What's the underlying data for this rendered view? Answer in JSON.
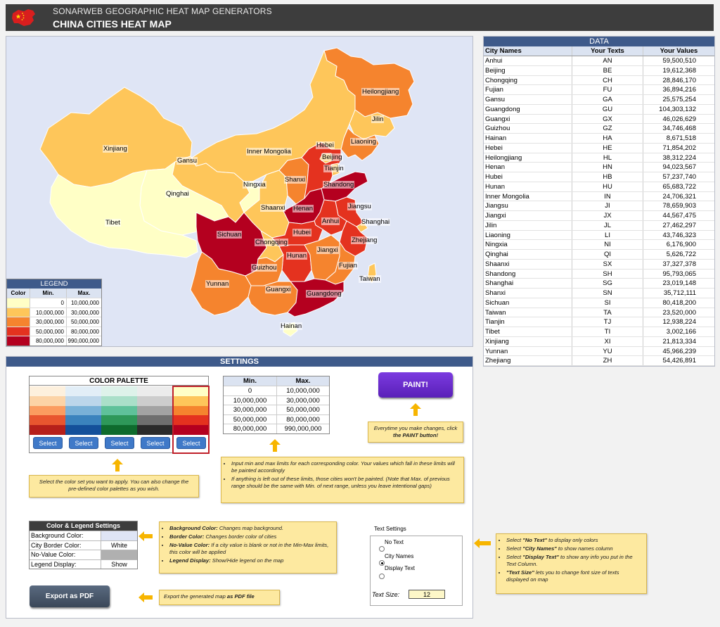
{
  "header": {
    "app_name": "SONARWEB GEOGRAPHIC HEAT MAP GENERATORS",
    "title": "CHINA CITIES HEAT MAP"
  },
  "colors": {
    "header_bg": "#3d3d3d",
    "panel_title_bg": "#3e5a8a",
    "map_bg": "#dfe5f5",
    "legend_scale": [
      "#ffffc6",
      "#fec65a",
      "#f5842e",
      "#e4321f",
      "#b4001f"
    ]
  },
  "map": {
    "labels": [
      "Heilongjiang",
      "Jilin",
      "Liaoning",
      "Xinjiang",
      "Gansu",
      "Inner Mongolia",
      "Hebei",
      "Beijing",
      "Tianjin",
      "Qinghai",
      "Ningxia",
      "Shanxi",
      "Shandong",
      "Tibet",
      "Shaanxi",
      "Henan",
      "Jiangsu",
      "Anhui",
      "Shanghai",
      "Sichuan",
      "Chongqing",
      "Hubei",
      "Zhejiang",
      "Jiangxi",
      "Hunan",
      "Guizhou",
      "Fujian",
      "Taiwan",
      "Yunnan",
      "Guangxi",
      "Guangdong",
      "Hainan"
    ]
  },
  "legend": {
    "title": "LEGEND",
    "headers": [
      "Color",
      "Min.",
      "Max."
    ],
    "rows": [
      {
        "min": "0",
        "max": "10,000,000"
      },
      {
        "min": "10,000,000",
        "max": "30,000,000"
      },
      {
        "min": "30,000,000",
        "max": "50,000,000"
      },
      {
        "min": "50,000,000",
        "max": "80,000,000"
      },
      {
        "min": "80,000,000",
        "max": "990,000,000"
      }
    ]
  },
  "data_table": {
    "title": "DATA",
    "headers": [
      "City Names",
      "Your Texts",
      "Your Values"
    ],
    "rows": [
      [
        "Anhui",
        "AN",
        "59,500,510"
      ],
      [
        "Beijing",
        "BE",
        "19,612,368"
      ],
      [
        "Chongqing",
        "CH",
        "28,846,170"
      ],
      [
        "Fujian",
        "FU",
        "36,894,216"
      ],
      [
        "Gansu",
        "GA",
        "25,575,254"
      ],
      [
        "Guangdong",
        "GU",
        "104,303,132"
      ],
      [
        "Guangxi",
        "GX",
        "46,026,629"
      ],
      [
        "Guizhou",
        "GZ",
        "34,746,468"
      ],
      [
        "Hainan",
        "HA",
        "8,671,518"
      ],
      [
        "Hebei",
        "HE",
        "71,854,202"
      ],
      [
        "Heilongjiang",
        "HL",
        "38,312,224"
      ],
      [
        "Henan",
        "HN",
        "94,023,567"
      ],
      [
        "Hubei",
        "HB",
        "57,237,740"
      ],
      [
        "Hunan",
        "HU",
        "65,683,722"
      ],
      [
        "Inner Mongolia",
        "IN",
        "24,706,321"
      ],
      [
        "Jiangsu",
        "JI",
        "78,659,903"
      ],
      [
        "Jiangxi",
        "JX",
        "44,567,475"
      ],
      [
        "Jilin",
        "JL",
        "27,462,297"
      ],
      [
        "Liaoning",
        "LI",
        "43,746,323"
      ],
      [
        "Ningxia",
        "NI",
        "6,176,900"
      ],
      [
        "Qinghai",
        "QI",
        "5,626,722"
      ],
      [
        "Shaanxi",
        "SX",
        "37,327,378"
      ],
      [
        "Shandong",
        "SH",
        "95,793,065"
      ],
      [
        "Shanghai",
        "SG",
        "23,019,148"
      ],
      [
        "Shanxi",
        "SN",
        "35,712,111"
      ],
      [
        "Sichuan",
        "SI",
        "80,418,200"
      ],
      [
        "Taiwan",
        "TA",
        "23,520,000"
      ],
      [
        "Tianjin",
        "TJ",
        "12,938,224"
      ],
      [
        "Tibet",
        "TI",
        "3,002,166"
      ],
      [
        "Xinjiang",
        "XI",
        "21,813,334"
      ],
      [
        "Yunnan",
        "YU",
        "45,966,239"
      ],
      [
        "Zhejiang",
        "ZH",
        "54,426,891"
      ]
    ]
  },
  "settings": {
    "title": "SETTINGS",
    "palette": {
      "title": "COLOR PALETTE",
      "select_label": "Select",
      "columns": [
        [
          "#fdf0dd",
          "#fcd3a6",
          "#fb9c60",
          "#e8552f",
          "#b61f1a"
        ],
        [
          "#e2eef7",
          "#bcd6ea",
          "#79b1d7",
          "#3b83bd",
          "#14509a"
        ],
        [
          "#def2ea",
          "#aadfc9",
          "#5fc19a",
          "#2e9859",
          "#0e6b2d"
        ],
        [
          "#ececec",
          "#cdcdcd",
          "#a3a3a3",
          "#6f6f6f",
          "#2b2b2b"
        ],
        [
          "#ffffc6",
          "#fec65a",
          "#f5842e",
          "#e4321f",
          "#b4001f"
        ]
      ]
    },
    "minmax": {
      "headers": [
        "Min.",
        "Max."
      ],
      "rows": [
        [
          "0",
          "10,000,000"
        ],
        [
          "10,000,000",
          "30,000,000"
        ],
        [
          "30,000,000",
          "50,000,000"
        ],
        [
          "50,000,000",
          "80,000,000"
        ],
        [
          "80,000,000",
          "990,000,000"
        ]
      ]
    },
    "paint_label": "PAINT!",
    "paint_note_a": "Everytime you make changes, click",
    "paint_note_b": "the PAINT button!",
    "palette_note": "Select the color set you want to apply. You can also change the pre-defined color palettes as you wish.",
    "limits_note_1": "Input min and max limits for each corresponding color. Your values which fall in these limits will be painted accordingly",
    "limits_note_2": "If anything is left out of these limits, those cities won't be painted. (Note that Max. of previous range should be the same with Min. of next range, unless you leave intentional gaps)",
    "cls": {
      "title": "Color & Legend Settings",
      "bg_label": "Background Color:",
      "border_label": "City Border Color:",
      "border_value": "White",
      "novalue_label": "No-Value Color:",
      "legend_label": "Legend Display:",
      "legend_value": "Show",
      "bg_swatch": "#dfe5f5",
      "novalue_swatch": "#b0b0b0"
    },
    "cls_note": {
      "bg_b": "Background Color:",
      "bg_t": " Changes map background.",
      "border_b": "Border Color:",
      "border_t": " Changes border color of cities",
      "nv_b": "No-Value Color:",
      "nv_t": " If a city value is blank or not in the Min-Max limits, this color will be applied",
      "lg_b": "Legend Display:",
      "lg_t": " Show/Hide legend on the map"
    },
    "export_label": "Export as PDF",
    "export_note_a": "Export the generated map ",
    "export_note_b": "as PDF file",
    "text_settings": {
      "title": "Text Settings",
      "opt_none": "No Text",
      "opt_names": "City Names",
      "opt_display": "Display Text",
      "size_label": "Text Size:",
      "size_value": "12"
    },
    "text_note": {
      "l1a": "Select ",
      "l1b": "\"No Text\"",
      "l1c": " to display only colors",
      "l2a": "Select ",
      "l2b": "\"City Names\"",
      "l2c": " to show names column",
      "l3a": "Select ",
      "l3b": "\"Display Text\"",
      "l3c": " to show any info you put in the Text Column.",
      "l4b": "\"Text Size\"",
      "l4c": " lets you to change font size of texts displayed on map"
    }
  }
}
